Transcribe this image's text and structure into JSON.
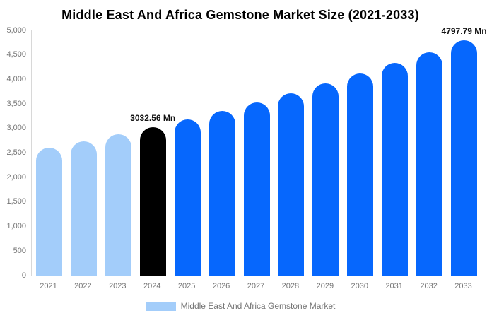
{
  "title": "Middle East And Africa Gemstone Market Size (2021-2033)",
  "colors": {
    "bar_light_blue": "#a3cdfa",
    "bar_highlight_black": "#000000",
    "bar_bright_blue": "#0667fd",
    "axis_line": "#d8d8d8",
    "tick_text": "#757575",
    "annotation_text": "#111111",
    "title_text": "#000000",
    "background": "#ffffff"
  },
  "chart_data": {
    "type": "bar",
    "title": "Middle East And Africa Gemstone Market Size (2021-2033)",
    "xlabel": "",
    "ylabel": "",
    "categories": [
      "2021",
      "2022",
      "2023",
      "2024",
      "2025",
      "2026",
      "2027",
      "2028",
      "2029",
      "2030",
      "2031",
      "2032",
      "2033"
    ],
    "values": [
      2602,
      2738,
      2882,
      3032.56,
      3191,
      3358,
      3534,
      3719,
      3913,
      4118,
      4333,
      4560,
      4797.79
    ],
    "bar_colors": [
      "#a3cdfa",
      "#a3cdfa",
      "#a3cdfa",
      "#000000",
      "#0667fd",
      "#0667fd",
      "#0667fd",
      "#0667fd",
      "#0667fd",
      "#0667fd",
      "#0667fd",
      "#0667fd",
      "#0667fd"
    ],
    "ylim": [
      0,
      5000
    ],
    "ytick_step": 500,
    "ytick_labels": [
      "0",
      "500",
      "1,000",
      "1,500",
      "2,000",
      "2,500",
      "3,000",
      "3,500",
      "4,000",
      "4,500",
      "5,000"
    ],
    "grid": false,
    "legend_position": "bottom",
    "annotations": [
      {
        "category": "2024",
        "text": "3032.56 Mn"
      },
      {
        "category": "2033",
        "text": "4797.79 Mn"
      }
    ]
  },
  "legend": {
    "label": "Middle East And Africa Gemstone Market",
    "swatch_color": "#a3cdfa"
  }
}
